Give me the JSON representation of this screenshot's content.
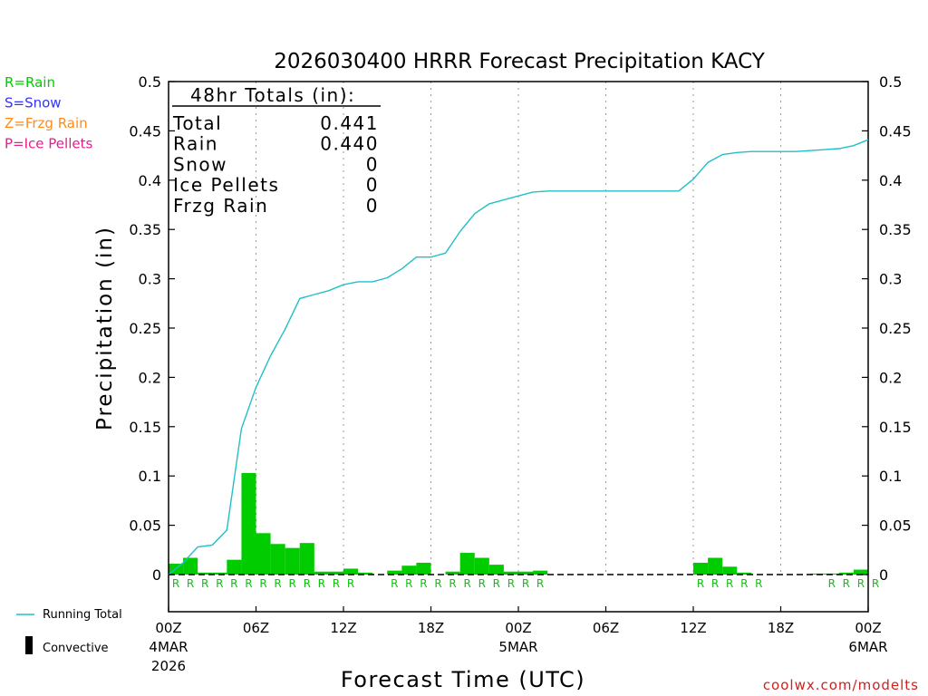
{
  "chart_data": {
    "type": "bar",
    "title": "2026030400 HRRR Forecast Precipitation KACY",
    "xlabel": "Forecast Time (UTC)",
    "ylabel": "Precipitation (in)",
    "ylim": [
      0,
      0.5
    ],
    "y_ticks": [
      0,
      0.05,
      0.1,
      0.15,
      0.2,
      0.25,
      0.3,
      0.35,
      0.4,
      0.45,
      0.5
    ],
    "y_tick_labels": [
      "0",
      "0.05",
      "0.1",
      "0.15",
      "0.2",
      "0.25",
      "0.3",
      "0.35",
      "0.4",
      "0.45",
      "0.5"
    ],
    "xlim_hours": [
      0,
      48
    ],
    "x_ticks": [
      {
        "hour": 0,
        "label": "00Z",
        "date": "4MAR",
        "year": "2026"
      },
      {
        "hour": 6,
        "label": "06Z"
      },
      {
        "hour": 12,
        "label": "12Z"
      },
      {
        "hour": 18,
        "label": "18Z"
      },
      {
        "hour": 24,
        "label": "00Z",
        "date": "5MAR"
      },
      {
        "hour": 30,
        "label": "06Z"
      },
      {
        "hour": 36,
        "label": "12Z"
      },
      {
        "hour": 42,
        "label": "18Z"
      },
      {
        "hour": 48,
        "label": "00Z",
        "date": "6MAR"
      }
    ],
    "hourly_precip": [
      0.011,
      0.017,
      0.002,
      0.002,
      0.015,
      0.103,
      0.042,
      0.031,
      0.027,
      0.032,
      0.003,
      0.003,
      0.006,
      0.002,
      0.0,
      0.004,
      0.009,
      0.012,
      0.0,
      0.003,
      0.022,
      0.017,
      0.01,
      0.003,
      0.003,
      0.004,
      0.0,
      0.0,
      0.0,
      0.0,
      0.0,
      0.0,
      0.0,
      0.0,
      0.0,
      0.0,
      0.012,
      0.017,
      0.008,
      0.002,
      0.0,
      0.0,
      0.0,
      0.0,
      0.001,
      0.001,
      0.002,
      0.005
    ],
    "precip_type_markers": [
      "R",
      "R",
      "R",
      "R",
      "R",
      "R",
      "R",
      "R",
      "R",
      "R",
      "R",
      "R",
      "R",
      "",
      "",
      "R",
      "R",
      "R",
      "R",
      "R",
      "R",
      "R",
      "R",
      "R",
      "R",
      "R",
      "",
      "",
      "",
      "",
      "",
      "",
      "",
      "",
      "",
      "",
      "R",
      "R",
      "R",
      "R",
      "R",
      "",
      "",
      "",
      "",
      "R",
      "R",
      "R",
      "R"
    ],
    "running_total": [
      [
        0,
        0.0
      ],
      [
        1,
        0.012
      ],
      [
        2,
        0.028
      ],
      [
        3,
        0.03
      ],
      [
        4,
        0.045
      ],
      [
        5,
        0.148
      ],
      [
        6,
        0.19
      ],
      [
        7,
        0.222
      ],
      [
        8,
        0.249
      ],
      [
        9,
        0.28
      ],
      [
        10,
        0.284
      ],
      [
        11,
        0.288
      ],
      [
        12,
        0.294
      ],
      [
        13,
        0.297
      ],
      [
        14,
        0.297
      ],
      [
        15,
        0.301
      ],
      [
        16,
        0.31
      ],
      [
        17,
        0.322
      ],
      [
        18,
        0.322
      ],
      [
        19,
        0.326
      ],
      [
        20,
        0.348
      ],
      [
        21,
        0.366
      ],
      [
        22,
        0.376
      ],
      [
        23,
        0.38
      ],
      [
        24,
        0.384
      ],
      [
        25,
        0.388
      ],
      [
        26,
        0.389
      ],
      [
        27,
        0.389
      ],
      [
        28,
        0.389
      ],
      [
        29,
        0.389
      ],
      [
        30,
        0.389
      ],
      [
        31,
        0.389
      ],
      [
        32,
        0.389
      ],
      [
        33,
        0.389
      ],
      [
        34,
        0.389
      ],
      [
        35,
        0.389
      ],
      [
        36,
        0.401
      ],
      [
        37,
        0.418
      ],
      [
        38,
        0.426
      ],
      [
        39,
        0.428
      ],
      [
        40,
        0.429
      ],
      [
        41,
        0.429
      ],
      [
        42,
        0.429
      ],
      [
        43,
        0.429
      ],
      [
        44,
        0.43
      ],
      [
        45,
        0.431
      ],
      [
        46,
        0.432
      ],
      [
        47,
        0.435
      ],
      [
        48,
        0.441
      ]
    ],
    "series": [
      {
        "name": "Running Total",
        "color": "#20c0c8",
        "kind": "line"
      },
      {
        "name": "Convective",
        "color": "#000000",
        "kind": "bar"
      },
      {
        "name": "Rain",
        "color": "#00cc00",
        "kind": "bar"
      }
    ],
    "colors": {
      "rain": "#00cc00",
      "snow": "#3333ff",
      "frzg_rain": "#ff8c1a",
      "ice_pellets": "#e0208c",
      "running_total": "#20c0c8",
      "footer": "#d02020"
    },
    "type_legend": [
      {
        "text": "R=Rain",
        "color": "#00cc00"
      },
      {
        "text": "S=Snow",
        "color": "#3333ff"
      },
      {
        "text": "Z=Frzg Rain",
        "color": "#ff8c1a"
      },
      {
        "text": "P=Ice Pellets",
        "color": "#e0208c"
      }
    ],
    "totals": {
      "header": "48hr Totals (in):",
      "rows": [
        {
          "label": "Total",
          "value": "0.441"
        },
        {
          "label": "Rain",
          "value": "0.440"
        },
        {
          "label": "Snow",
          "value": "0"
        },
        {
          "label": "Ice Pellets",
          "value": "0"
        },
        {
          "label": "Frzg Rain",
          "value": "0"
        }
      ]
    },
    "legend": {
      "running_total_label": "Running Total",
      "convective_label": "Convective"
    },
    "footer": "coolwx.com/modelts"
  }
}
